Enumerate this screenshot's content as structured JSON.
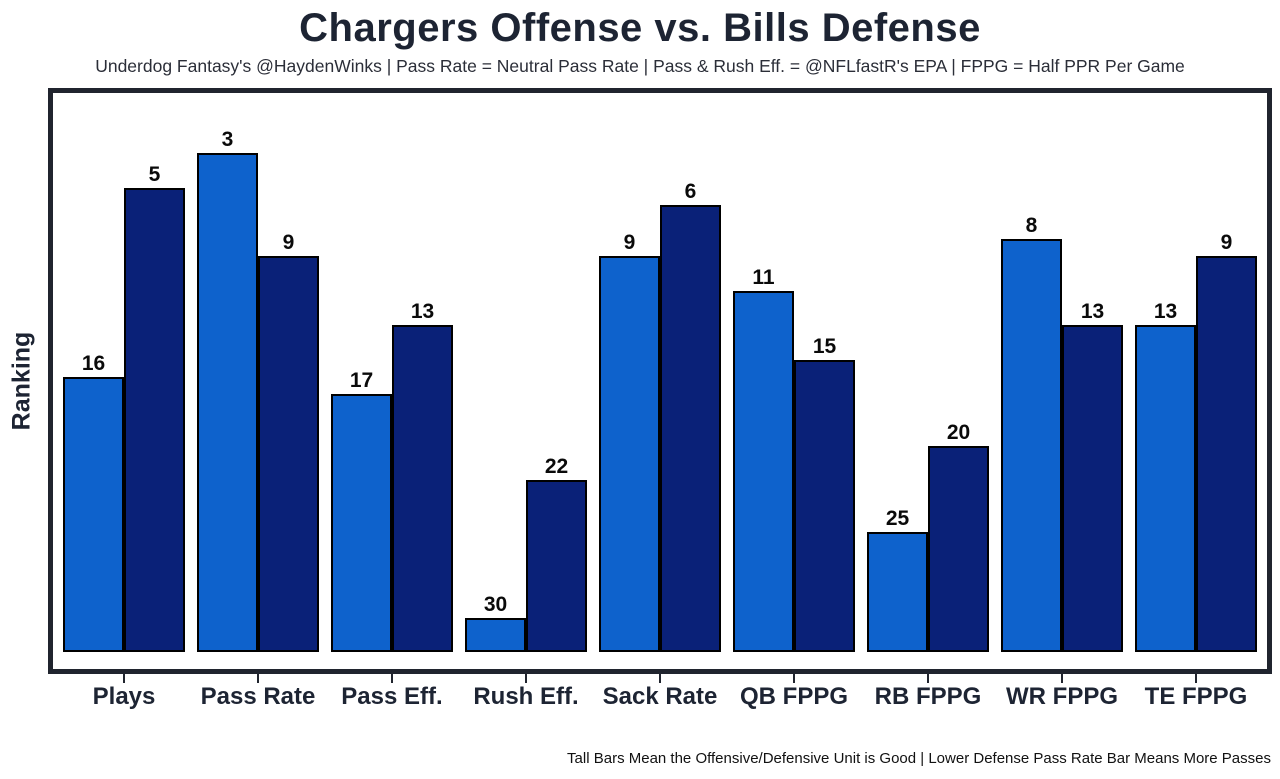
{
  "page": {
    "title": "Chargers Offense vs. Bills Defense",
    "subtitle": "Underdog Fantasy's @HaydenWinks | Pass Rate = Neutral Pass Rate | Pass & Rush Eff. = @NFLfastR's EPA | FPPG = Half PPR Per Game",
    "footnote": "Tall Bars Mean the Offensive/Defensive Unit is Good | Lower Defense Pass Rate Bar Means More Passes"
  },
  "chart_data": {
    "type": "bar",
    "title": "Chargers Offense vs. Bills Defense",
    "subtitle": "Underdog Fantasy's @HaydenWinks | Pass Rate = Neutral Pass Rate | Pass & Rush Eff. = @NFLfastR's EPA | FPPG = Half PPR Per Game",
    "xlabel": "",
    "ylabel": "Ranking",
    "categories": [
      "Plays",
      "Pass Rate",
      "Pass Eff.",
      "Rush Eff.",
      "Sack Rate",
      "QB FPPG",
      "RB FPPG",
      "WR FPPG",
      "TE FPPG"
    ],
    "series": [
      {
        "name": "Chargers Offense",
        "color": "#0E62CC",
        "values": [
          16,
          3,
          17,
          30,
          9,
          11,
          25,
          8,
          13
        ]
      },
      {
        "name": "Bills Defense",
        "color": "#0A2178",
        "values": [
          5,
          9,
          13,
          22,
          6,
          15,
          20,
          13,
          9
        ]
      }
    ],
    "value_semantics": "NFL ranking out of 32 teams (1 = best); taller bar = better rank",
    "ylim": [
      0,
      32
    ],
    "grid": false,
    "legend_position": "none",
    "y_tick_labels": [],
    "footnote": "Tall Bars Mean the Offensive/Defensive Unit is Good | Lower Defense Pass Rate Bar Means More Passes"
  },
  "colors": {
    "background": "#FFFFFF",
    "offense_bar": "#0E62CC",
    "defense_bar": "#0A2178",
    "bar_outline": "#000000",
    "frame_border": "#20242E",
    "heading_text": "#1D2433",
    "subtitle_text": "#2B2E38",
    "value_label_text": "#0A0A0A",
    "footnote_text": "#111111"
  }
}
